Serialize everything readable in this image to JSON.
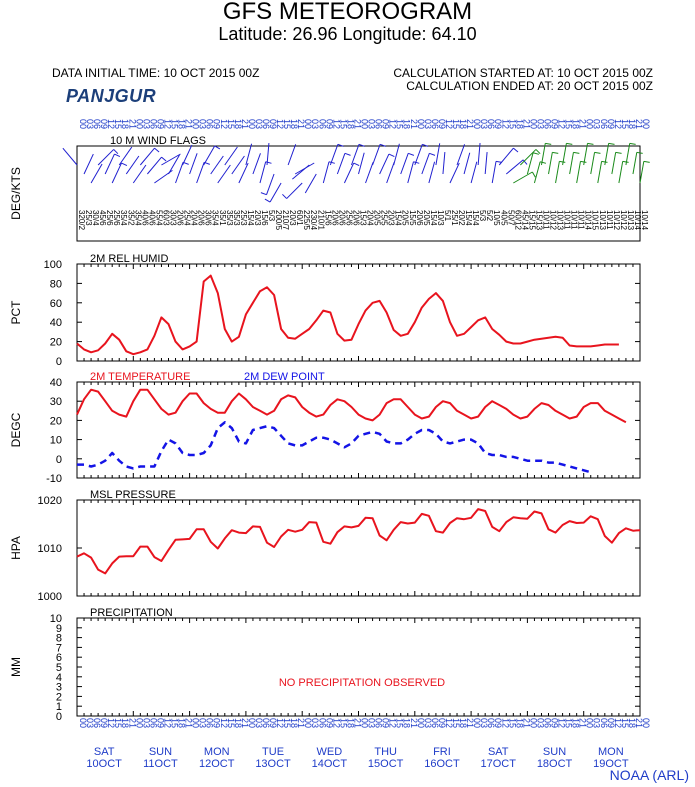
{
  "header": {
    "title": "GFS METEOROGRAM",
    "subtitle": "Latitude: 26.96 Longitude:  64.10",
    "initial_time": "DATA INITIAL TIME: 10 OCT 2015 00Z",
    "calc_started": "CALCULATION STARTED AT: 10 OCT 2015 00Z",
    "calc_ended": "CALCULATION ENDED AT: 20 OCT 2015 00Z",
    "station": "PANJGUR",
    "credit": "NOAA (ARL)"
  },
  "colors": {
    "humidity": "#e8141e",
    "temperature": "#e8141e",
    "dewpoint": "#1414e6",
    "wind_low": "#2020d0",
    "wind_high": "#1a8a1a",
    "axis_labels": "#1f3cc8"
  },
  "time_axis": {
    "hours": [
      "00",
      "03",
      "06",
      "09",
      "12",
      "15",
      "18",
      "21"
    ],
    "days": [
      {
        "dow": "SAT",
        "date": "10OCT"
      },
      {
        "dow": "SUN",
        "date": "11OCT"
      },
      {
        "dow": "MON",
        "date": "12OCT"
      },
      {
        "dow": "TUE",
        "date": "13OCT"
      },
      {
        "dow": "WED",
        "date": "14OCT"
      },
      {
        "dow": "THU",
        "date": "15OCT"
      },
      {
        "dow": "FRI",
        "date": "16OCT"
      },
      {
        "dow": "SAT",
        "date": "17OCT"
      },
      {
        "dow": "SUN",
        "date": "18OCT"
      },
      {
        "dow": "MON",
        "date": "19OCT"
      }
    ]
  },
  "chart_data": [
    {
      "type": "line",
      "panel": "wind",
      "title": "10 M  WIND FLAGS",
      "ylabel": "DEG/KTS",
      "x_hours_step": 3,
      "series": [
        {
          "name": "direction_deg",
          "values": [
            320,
            25,
            30,
            45,
            25,
            25,
            35,
            35,
            35,
            40,
            40,
            55,
            60,
            30,
            20,
            25,
            20,
            20,
            30,
            35,
            35,
            35,
            35,
            25,
            15,
            20,
            15,
            5,
            200,
            210,
            20,
            60,
            225,
            230,
            210,
            15,
            20,
            20,
            25,
            20,
            15,
            20,
            20,
            25,
            20,
            15,
            20,
            15,
            20,
            20,
            15,
            10,
            5,
            25,
            20,
            15,
            15,
            5,
            5,
            10,
            40,
            50,
            60,
            45,
            15,
            15,
            10,
            10,
            10,
            10,
            10,
            10,
            10,
            10,
            10,
            10,
            10,
            10,
            10,
            10,
            10
          ]
        },
        {
          "name": "speed_kt",
          "values": [
            2,
            3,
            4,
            6,
            6,
            6,
            4,
            2,
            4,
            6,
            6,
            4,
            3,
            3,
            6,
            4,
            4,
            6,
            6,
            4,
            1,
            3,
            3,
            3,
            4,
            3,
            6,
            3,
            5,
            7,
            3,
            1,
            5,
            4,
            1,
            6,
            6,
            6,
            6,
            6,
            3,
            4,
            5,
            5,
            3,
            4,
            5,
            5,
            6,
            5,
            4,
            3,
            1,
            1,
            2,
            4,
            4,
            3,
            2,
            5,
            5,
            7,
            12,
            14,
            15,
            13,
            11,
            12,
            13,
            11,
            11,
            11,
            14,
            15,
            13,
            11,
            12,
            12,
            13,
            14,
            14
          ]
        }
      ]
    },
    {
      "type": "line",
      "panel": "humidity",
      "title": "2M REL HUMID",
      "ylabel": "PCT",
      "ylim": [
        0,
        100
      ],
      "yticks": [
        0,
        20,
        40,
        60,
        80,
        100
      ],
      "x_hours_step": 3,
      "series": [
        {
          "name": "2M REL HUMID",
          "values": [
            18,
            12,
            9,
            11,
            18,
            28,
            22,
            10,
            7,
            9,
            12,
            26,
            45,
            38,
            20,
            12,
            15,
            20,
            82,
            88,
            70,
            33,
            20,
            25,
            48,
            60,
            72,
            76,
            68,
            33,
            24,
            23,
            28,
            33,
            42,
            52,
            50,
            28,
            21,
            22,
            38,
            52,
            60,
            62,
            50,
            32,
            26,
            28,
            40,
            55,
            64,
            70,
            62,
            40,
            26,
            28,
            35,
            42,
            45,
            33,
            27,
            20,
            18,
            18,
            20,
            22,
            23,
            24,
            25,
            24,
            16,
            15,
            15,
            15,
            16,
            17,
            17,
            17
          ]
        }
      ]
    },
    {
      "type": "line",
      "panel": "temperature",
      "ylabel": "DEGC",
      "ylim": [
        -10,
        40
      ],
      "yticks": [
        -10,
        0,
        10,
        20,
        30,
        40
      ],
      "x_hours_step": 3,
      "series": [
        {
          "name": "2M TEMPERATURE",
          "values": [
            23,
            31,
            36,
            35,
            30,
            25,
            23,
            22,
            30,
            36,
            36,
            31,
            26,
            23,
            24,
            30,
            34,
            34,
            29,
            26,
            24,
            24,
            30,
            34,
            31,
            27,
            25,
            23,
            25,
            31,
            33,
            32,
            27,
            24,
            22,
            23,
            28,
            31,
            30,
            27,
            23,
            21,
            20,
            23,
            29,
            31,
            31,
            27,
            23,
            21,
            22,
            27,
            30,
            29,
            25,
            23,
            21,
            22,
            27,
            30,
            28,
            26,
            23,
            21,
            22,
            26,
            29,
            28,
            25,
            23,
            21,
            22,
            27,
            29,
            29,
            25,
            23,
            21,
            19
          ]
        },
        {
          "name": "2M  DEW POINT",
          "values": [
            -3,
            -3,
            -4,
            -3,
            -1,
            3,
            -1,
            -4,
            -5,
            -4,
            -4,
            -4,
            4,
            10,
            8,
            3,
            2,
            2,
            3,
            7,
            16,
            19,
            16,
            9,
            8,
            15,
            16,
            17,
            16,
            12,
            8,
            7,
            7,
            9,
            11,
            11,
            10,
            8,
            6,
            8,
            12,
            13,
            14,
            13,
            9,
            8,
            8,
            10,
            13,
            15,
            15,
            13,
            9,
            8,
            9,
            10,
            10,
            8,
            3,
            2,
            2,
            1,
            1,
            0,
            -1,
            -1,
            -1,
            -2,
            -2,
            -3,
            -4,
            -5,
            -6,
            -7
          ]
        }
      ]
    },
    {
      "type": "line",
      "panel": "pressure",
      "title": "MSL PRESSURE",
      "ylabel": "HPA",
      "ylim": [
        1000,
        1020
      ],
      "yticks": [
        1000,
        1010,
        1020
      ],
      "x_hours_step": 3,
      "series": [
        {
          "name": "MSL PRESSURE",
          "values": [
            1008.2,
            1008.9,
            1008,
            1005.5,
            1004.7,
            1006.8,
            1008.2,
            1008.3,
            1008.3,
            1010.3,
            1010.3,
            1008.1,
            1007.3,
            1009.6,
            1011.7,
            1011.8,
            1011.9,
            1013.9,
            1013.9,
            1011.3,
            1009.9,
            1012,
            1013.7,
            1013.2,
            1013.1,
            1014.5,
            1014.4,
            1011.1,
            1010.2,
            1012.4,
            1013.8,
            1013.4,
            1013.8,
            1015.4,
            1015.3,
            1011.3,
            1010.9,
            1013.3,
            1014.5,
            1014.3,
            1014.6,
            1016.3,
            1016.2,
            1012.6,
            1011.6,
            1013.8,
            1015.4,
            1015.1,
            1015.3,
            1017.1,
            1016.7,
            1013.5,
            1013.2,
            1015.2,
            1016.2,
            1016,
            1016.3,
            1018.1,
            1017.7,
            1014.4,
            1013.5,
            1015.4,
            1016.4,
            1016.2,
            1016.1,
            1017.6,
            1017.2,
            1013.9,
            1013.2,
            1014.8,
            1015.6,
            1015.2,
            1015.3,
            1016.6,
            1016,
            1012.5,
            1011.1,
            1013.1,
            1014.1,
            1013.6,
            1013.7
          ]
        }
      ]
    },
    {
      "type": "line",
      "panel": "precipitation",
      "title": "PRECIPITATION",
      "ylabel": "MM",
      "ylim": [
        0,
        10
      ],
      "yticks": [
        0,
        1,
        2,
        3,
        4,
        5,
        6,
        7,
        8,
        9,
        10
      ],
      "annotation": "NO PRECIPITATION OBSERVED",
      "series": []
    }
  ]
}
